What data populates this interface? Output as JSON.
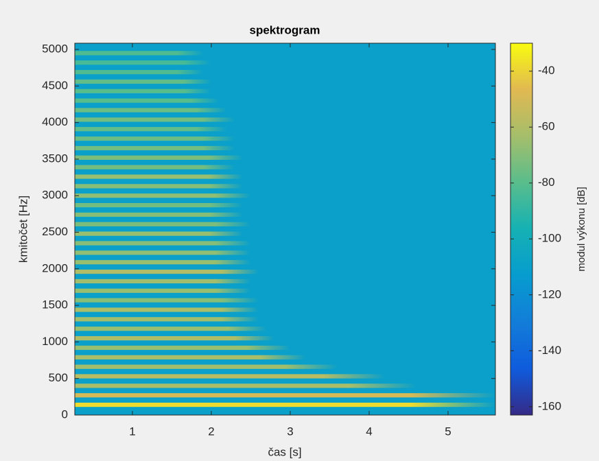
{
  "chart_data": {
    "type": "spectrogram",
    "title": "spektrogram",
    "xlabel": "čas [s]",
    "ylabel": "kmitočet [Hz]",
    "colorbar_label": "modul výkonu [dB]",
    "xlim": [
      0.27,
      5.6
    ],
    "xticks": [
      1,
      2,
      3,
      4,
      5
    ],
    "ylim": [
      0,
      5085
    ],
    "yticks": [
      0,
      500,
      1000,
      1500,
      2000,
      2500,
      3000,
      3500,
      4000,
      4500,
      5000
    ],
    "clim": [
      -163,
      -30
    ],
    "cticks": [
      -160,
      -140,
      -120,
      -100,
      -80,
      -60,
      -40
    ],
    "colormap": [
      "#352a87",
      "#0f5cdd",
      "#127dd8",
      "#079ccf",
      "#15b1b4",
      "#59bd8c",
      "#a5be6b",
      "#e1b952",
      "#f9fb0e"
    ],
    "noise_level": -110,
    "band_frequencies": [
      140,
      270,
      400,
      530,
      660,
      790,
      920,
      1050,
      1180,
      1310,
      1440,
      1570,
      1700,
      1830,
      1960,
      2090,
      2220,
      2350,
      2480,
      2610,
      2740,
      2870,
      3000,
      3130,
      3260,
      3390,
      3520,
      3650,
      3780,
      3910,
      4040,
      4170,
      4300,
      4430,
      4560,
      4690,
      4820,
      4950
    ],
    "band_end_times": [
      5.6,
      5.6,
      4.6,
      4.2,
      3.6,
      3.2,
      3.0,
      2.8,
      2.7,
      2.6,
      2.6,
      2.6,
      2.5,
      2.5,
      2.6,
      2.5,
      2.5,
      2.5,
      2.4,
      2.5,
      2.4,
      2.4,
      2.5,
      2.4,
      2.4,
      2.3,
      2.4,
      2.3,
      2.3,
      2.2,
      2.3,
      2.2,
      2.1,
      2.0,
      2.0,
      1.9,
      2.0,
      1.9
    ],
    "band_levels": [
      -38,
      -50,
      -62,
      -58,
      -64,
      -62,
      -66,
      -60,
      -66,
      -64,
      -62,
      -70,
      -66,
      -64,
      -60,
      -66,
      -68,
      -70,
      -66,
      -72,
      -70,
      -74,
      -68,
      -70,
      -66,
      -74,
      -72,
      -74,
      -76,
      -78,
      -74,
      -76,
      -80,
      -80,
      -78,
      -82,
      -84,
      -82
    ]
  }
}
